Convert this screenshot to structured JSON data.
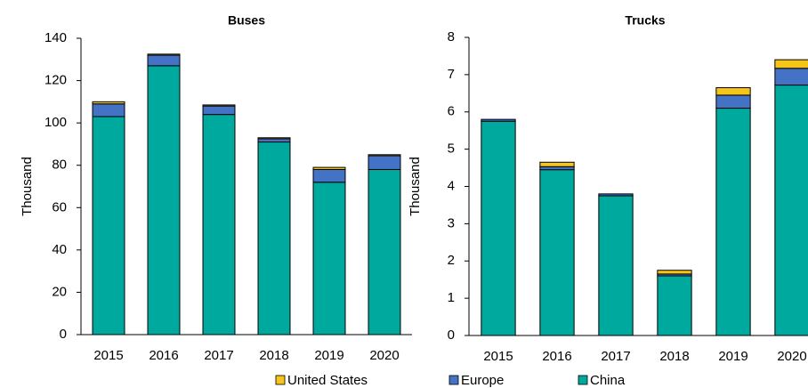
{
  "chart_data": [
    {
      "type": "bar",
      "stacked": true,
      "title": "Buses",
      "y_label": "Thousand",
      "categories": [
        "2015",
        "2016",
        "2017",
        "2018",
        "2019",
        "2020"
      ],
      "series": [
        {
          "name": "China",
          "color": "#00a99d",
          "values": [
            103,
            127,
            104,
            91,
            72,
            78
          ]
        },
        {
          "name": "Europe",
          "color": "#4472c4",
          "values": [
            6,
            5,
            4,
            1.5,
            6,
            6.5
          ]
        },
        {
          "name": "United States",
          "color": "#f5c518",
          "values": [
            1,
            0.5,
            0.5,
            0.5,
            1,
            0.5
          ]
        }
      ],
      "ylim": [
        0,
        140
      ],
      "yticks": [
        0,
        20,
        40,
        60,
        80,
        100,
        120,
        140
      ]
    },
    {
      "type": "bar",
      "stacked": true,
      "title": "Trucks",
      "y_label": "Thousand",
      "categories": [
        "2015",
        "2016",
        "2017",
        "2018",
        "2019",
        "2020"
      ],
      "series": [
        {
          "name": "China",
          "color": "#00a99d",
          "values": [
            5.75,
            4.45,
            3.75,
            1.6,
            6.1,
            6.72
          ]
        },
        {
          "name": "Europe",
          "color": "#4472c4",
          "values": [
            0.05,
            0.08,
            0.05,
            0.05,
            0.35,
            0.45
          ]
        },
        {
          "name": "United States",
          "color": "#f5c518",
          "values": [
            0,
            0.12,
            0,
            0.1,
            0.2,
            0.23
          ]
        }
      ],
      "ylim": [
        0,
        8
      ],
      "yticks": [
        0,
        1,
        2,
        3,
        4,
        5,
        6,
        7,
        8
      ]
    }
  ]
}
